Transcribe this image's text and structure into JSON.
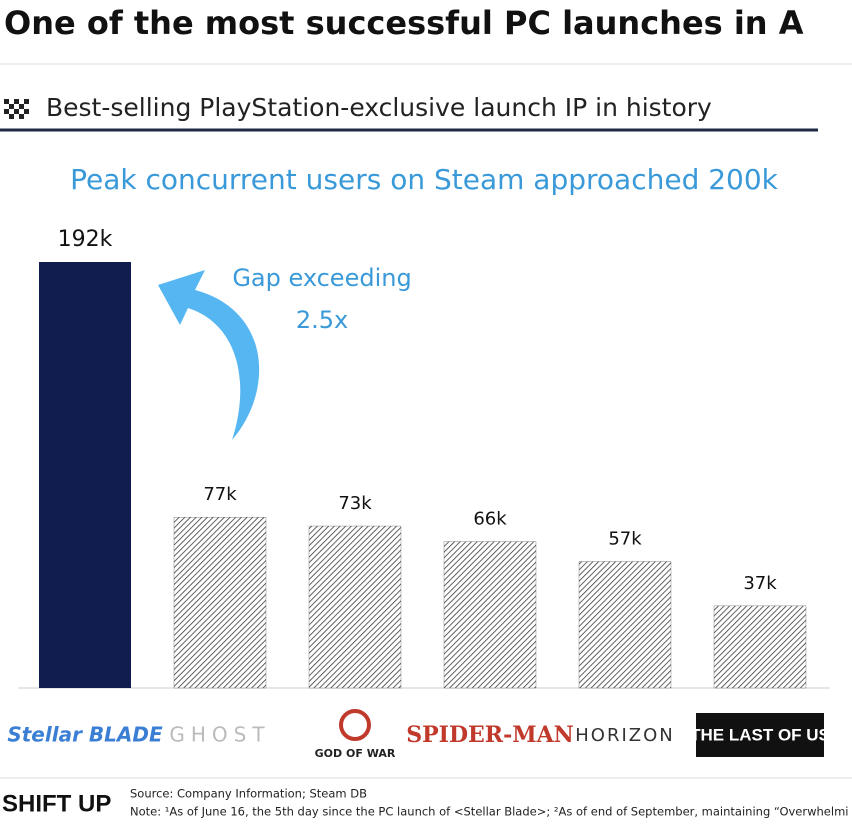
{
  "header": {
    "title": "One of the most successful PC launches in A",
    "subtitle": "Best-selling PlayStation-exclusive launch IP in history"
  },
  "chart_data": {
    "type": "bar",
    "title": "Peak concurrent users on Steam approached 200k",
    "annotation": [
      "Gap exceeding",
      "2.5x"
    ],
    "categories": [
      "Stellar BLADE",
      "GHOST",
      "GOD OF WAR",
      "SPIDER-MAN",
      "HORIZON",
      "THE LAST OF US"
    ],
    "values": [
      192,
      77,
      73,
      66,
      57,
      37
    ],
    "value_labels": [
      "192k",
      "77k",
      "73k",
      "66k",
      "57k",
      "37k"
    ],
    "color": "#3a3a3a",
    "highlight": {
      "index": 0,
      "color": "#111d4f"
    }
  },
  "footer": {
    "logo": "SHIFT UP",
    "source": "Source: Company Information; Steam DB",
    "note": "Note: ¹As of June 16, the 5th day since the PC launch of <Stellar Blade>; ²As of end of September, maintaining “Overwhelmi"
  }
}
